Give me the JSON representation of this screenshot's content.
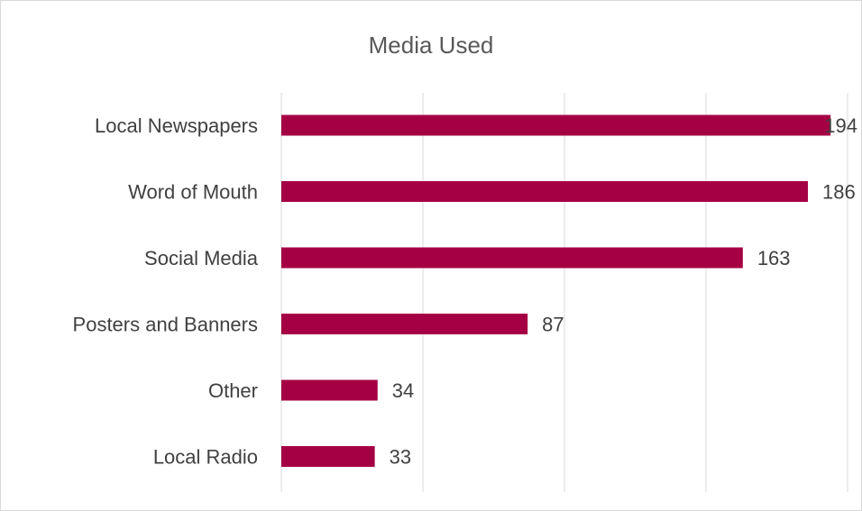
{
  "chart_data": {
    "type": "bar",
    "orientation": "horizontal",
    "title": "Media Used",
    "categories": [
      "Local Newspapers",
      "Word of Mouth",
      "Social Media",
      "Posters and Banners",
      "Other",
      "Local Radio"
    ],
    "values": [
      194,
      186,
      163,
      87,
      34,
      33
    ],
    "xlim": [
      0,
      200
    ],
    "grid": true,
    "data_labels": true,
    "bar_color": "#a50044",
    "gridline_color": "#d9d9d9"
  }
}
